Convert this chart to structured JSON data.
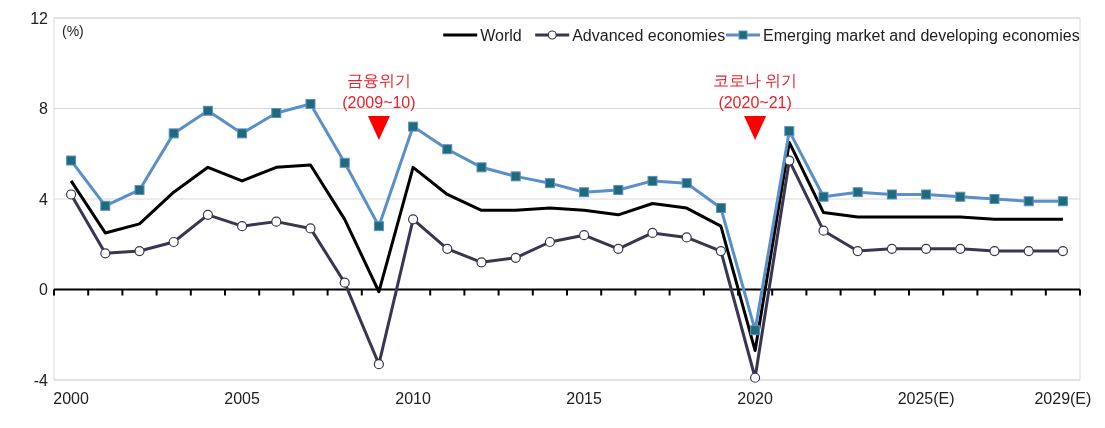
{
  "chart_data": {
    "type": "line",
    "ylabel": "(%)",
    "categories": [
      "2000",
      null,
      null,
      null,
      null,
      "2005",
      null,
      null,
      null,
      null,
      "2010",
      null,
      null,
      null,
      null,
      "2015",
      null,
      null,
      null,
      null,
      "2020",
      null,
      null,
      null,
      null,
      "2025(E)",
      null,
      null,
      null,
      "2029(E)"
    ],
    "series": [
      {
        "name": "World",
        "color": "#000000",
        "marker": "none",
        "values": [
          4.8,
          2.5,
          2.9,
          4.3,
          5.4,
          4.8,
          5.4,
          5.5,
          3.1,
          -0.1,
          5.4,
          4.2,
          3.5,
          3.5,
          3.6,
          3.5,
          3.3,
          3.8,
          3.6,
          2.8,
          -2.7,
          6.5,
          3.4,
          3.2,
          3.2,
          3.2,
          3.2,
          3.1,
          3.1,
          3.1
        ]
      },
      {
        "name": "Advanced economies",
        "color": "#3a3550",
        "marker": "circle",
        "values": [
          4.2,
          1.6,
          1.7,
          2.1,
          3.3,
          2.8,
          3.0,
          2.7,
          0.3,
          -3.3,
          3.1,
          1.8,
          1.2,
          1.4,
          2.1,
          2.4,
          1.8,
          2.5,
          2.3,
          1.7,
          -3.9,
          5.7,
          2.6,
          1.7,
          1.8,
          1.8,
          1.8,
          1.7,
          1.7,
          1.7
        ]
      },
      {
        "name": "Emerging market and developing economies",
        "color": "#5b8fc7",
        "marker": "square",
        "values": [
          5.7,
          3.7,
          4.4,
          6.9,
          7.9,
          6.9,
          7.8,
          8.2,
          5.6,
          2.8,
          7.2,
          6.2,
          5.4,
          5.0,
          4.7,
          4.3,
          4.4,
          4.8,
          4.7,
          3.6,
          -1.8,
          7.0,
          4.1,
          4.3,
          4.2,
          4.2,
          4.1,
          4.0,
          3.9,
          3.9
        ]
      }
    ],
    "ylim": [
      -4,
      12
    ],
    "yticks": [
      -4,
      0,
      4,
      8,
      12
    ],
    "grid": "y",
    "legend": "top right",
    "annotations": [
      "금융위기\n(2009~10)",
      "코로나 위기\n(2020~21)"
    ]
  }
}
